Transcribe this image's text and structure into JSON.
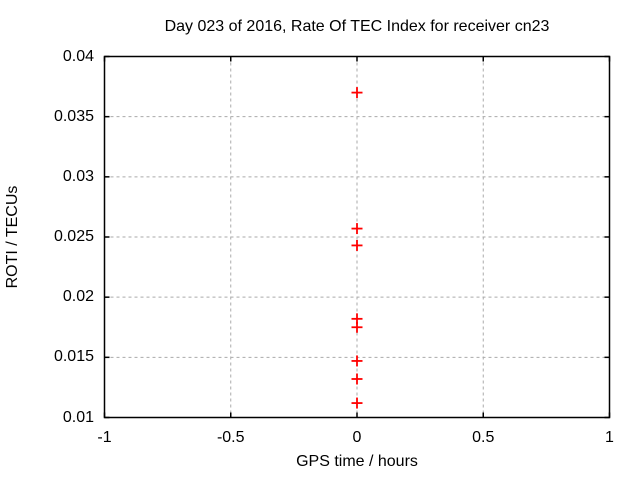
{
  "chart_data": {
    "type": "scatter",
    "title": "Day 023 of 2016, Rate Of TEC Index for receiver cn23",
    "xlabel": "GPS time / hours",
    "ylabel": "ROTI / TECUs",
    "xlim": [
      -1,
      1
    ],
    "ylim": [
      0.01,
      0.04
    ],
    "xticks": [
      {
        "value": -1,
        "label": "-1"
      },
      {
        "value": -0.5,
        "label": "-0.5"
      },
      {
        "value": 0,
        "label": "0"
      },
      {
        "value": 0.5,
        "label": "0.5"
      },
      {
        "value": 1,
        "label": "1"
      }
    ],
    "yticks": [
      {
        "value": 0.01,
        "label": "0.01"
      },
      {
        "value": 0.015,
        "label": "0.015"
      },
      {
        "value": 0.02,
        "label": "0.02"
      },
      {
        "value": 0.025,
        "label": "0.025"
      },
      {
        "value": 0.03,
        "label": "0.03"
      },
      {
        "value": 0.035,
        "label": "0.035"
      },
      {
        "value": 0.04,
        "label": "0.04"
      }
    ],
    "grid": true,
    "legend_position": "none",
    "marker": "plus",
    "series": [
      {
        "name": "ROTI",
        "points": [
          {
            "x": 0,
            "y": 0.037
          },
          {
            "x": 0,
            "y": 0.0257
          },
          {
            "x": 0,
            "y": 0.0243
          },
          {
            "x": 0,
            "y": 0.0182
          },
          {
            "x": 0,
            "y": 0.0175
          },
          {
            "x": 0,
            "y": 0.0147
          },
          {
            "x": 0,
            "y": 0.0132
          },
          {
            "x": 0,
            "y": 0.0112
          }
        ]
      }
    ],
    "colors": {
      "marker": "#ff0000",
      "grid": "#aaaaaa",
      "axis": "#000000",
      "background": "#ffffff",
      "text": "#000000"
    }
  }
}
